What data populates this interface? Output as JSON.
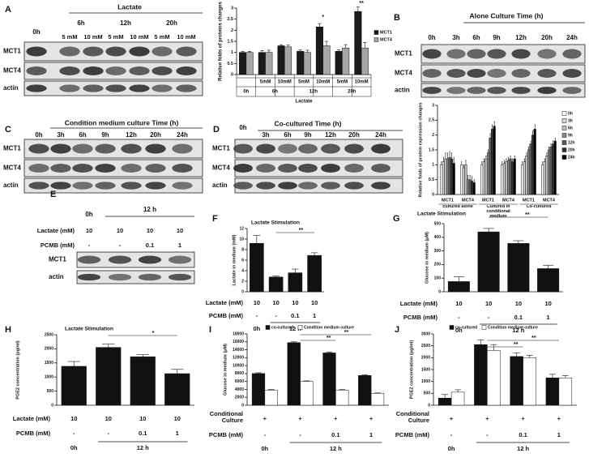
{
  "blots": [
    {
      "letter": "A",
      "header": "Lactate",
      "time_labels": [
        "0h",
        "6h",
        "12h",
        "20h"
      ],
      "dose_labels": [
        "5 mM",
        "10 mM",
        "5 mM",
        "10 mM",
        "5 mM",
        "10 mM"
      ],
      "rows": [
        "MCT1",
        "MCT4",
        "actin"
      ]
    },
    {
      "letter": "B",
      "header": "Alone Culture Time (h)",
      "time_labels": [
        "0h",
        "3h",
        "6h",
        "9h",
        "12h",
        "20h",
        "24h"
      ],
      "rows": [
        "MCT1",
        "MCT4",
        "actin"
      ]
    },
    {
      "letter": "C",
      "header": "Condition medium culture Time (h)",
      "time_labels": [
        "0h",
        "3h",
        "6h",
        "9h",
        "12h",
        "20h",
        "24h"
      ],
      "rows": [
        "MCT1",
        "MCT4",
        "actin"
      ]
    },
    {
      "letter": "D",
      "header": "Co-cultured Time (h)",
      "time_labels": [
        "0h",
        "3h",
        "6h",
        "9h",
        "12h",
        "20h",
        "24h"
      ],
      "rows": [
        "MCT1",
        "MCT4",
        "actin"
      ]
    },
    {
      "letter": "E",
      "time_labels": [
        "0h",
        "12 h"
      ],
      "condition_rows": [
        {
          "label": "Lactate (mM)",
          "values": [
            "10",
            "10",
            "10",
            "10"
          ]
        },
        {
          "label": "PCMB (mM)",
          "values": [
            "-",
            "-",
            "0.1",
            "1"
          ]
        }
      ],
      "rows": [
        "MCT1",
        "actin"
      ]
    }
  ],
  "chart_data": [
    {
      "type": "bar",
      "y_label": "Relative folds of proteins changes",
      "x_label": "Lactate",
      "categories": [
        null,
        "5mM",
        "10mM",
        "5mM",
        "10mM",
        "5mM",
        "10mM"
      ],
      "groups": [
        "0h",
        "6h",
        "12h",
        "20h"
      ],
      "series": [
        {
          "name": "MCT1",
          "color": "#1a1a1a",
          "values": [
            1.0,
            1.0,
            1.3,
            1.05,
            2.15,
            1.05,
            2.85
          ],
          "errors": [
            0.05,
            0.08,
            0.05,
            0.06,
            0.15,
            0.06,
            0.2
          ]
        },
        {
          "name": "MCT4",
          "color": "#a6a6a6",
          "values": [
            1.0,
            1.0,
            1.25,
            1.0,
            1.3,
            1.2,
            1.2
          ],
          "errors": [
            0.05,
            0.1,
            0.08,
            0.1,
            0.2,
            0.15,
            0.25
          ]
        }
      ],
      "ylim": [
        0,
        3
      ],
      "yticks": [
        0,
        0.5,
        1,
        1.5,
        2,
        2.5,
        3
      ],
      "legend": "right",
      "annotations": [
        "*",
        "**"
      ]
    },
    {
      "type": "bar",
      "y_label": "Relative folds of protein expression changes",
      "categories": [
        "MCT1",
        "MCT4",
        "MCT1",
        "MCT4",
        "MCT1",
        "MCT4"
      ],
      "groups": [
        "cultured alone",
        "Cultured in conditional medium",
        "Co-cultured"
      ],
      "series": [
        {
          "name": "0h",
          "color": "#ffffff",
          "values": [
            1.0,
            1.0,
            1.0,
            1.0,
            1.0,
            1.0
          ],
          "errors": [
            0.1,
            0.1,
            0.1,
            0.1,
            0.1,
            0.1
          ]
        },
        {
          "name": "3h",
          "color": "#d9d9d9",
          "values": [
            1.1,
            0.9,
            1.1,
            1.05,
            1.1,
            1.1
          ],
          "errors": [
            0.15,
            0.1,
            0.1,
            0.1,
            0.1,
            0.1
          ]
        },
        {
          "name": "6h",
          "color": "#bfbfbf",
          "values": [
            1.2,
            1.0,
            1.2,
            1.1,
            1.3,
            1.3
          ],
          "errors": [
            0.2,
            0.15,
            0.1,
            0.1,
            0.1,
            0.1
          ]
        },
        {
          "name": "9h",
          "color": "#8c8c8c",
          "values": [
            1.2,
            0.5,
            1.4,
            1.15,
            1.5,
            1.5
          ],
          "errors": [
            0.2,
            0.15,
            0.1,
            0.1,
            0.1,
            0.1
          ]
        },
        {
          "name": "12h",
          "color": "#595959",
          "values": [
            1.25,
            0.5,
            1.9,
            1.2,
            1.7,
            1.6
          ],
          "errors": [
            0.2,
            0.15,
            0.15,
            0.1,
            0.1,
            0.1
          ]
        },
        {
          "name": "20h",
          "color": "#333333",
          "values": [
            1.2,
            0.45,
            2.2,
            1.1,
            2.0,
            1.7
          ],
          "errors": [
            0.2,
            0.15,
            0.15,
            0.1,
            0.15,
            0.1
          ]
        },
        {
          "name": "24h",
          "color": "#000000",
          "values": [
            1.05,
            0.4,
            2.3,
            1.2,
            2.2,
            1.8
          ],
          "errors": [
            0.2,
            0.1,
            0.15,
            0.1,
            0.15,
            0.1
          ]
        }
      ],
      "ylim": [
        0,
        3
      ],
      "yticks": [
        0,
        0.5,
        1,
        1.5,
        2,
        2.5,
        3
      ],
      "legend": "right"
    },
    {
      "type": "bar",
      "letter": "F",
      "title": "Lactate Stimulation",
      "y_label": "Lactate in medium (mM)",
      "categories": [
        null,
        null,
        null,
        null
      ],
      "groups": [
        "0h",
        "12 h"
      ],
      "series": [
        {
          "color": "#111111",
          "values": [
            9.2,
            2.8,
            3.6,
            6.9
          ],
          "errors": [
            1.5,
            0.2,
            0.7,
            0.5
          ]
        }
      ],
      "ylim": [
        0,
        12
      ],
      "yticks": [
        0,
        2,
        4,
        6,
        8,
        10,
        12
      ],
      "annotations": [
        "**"
      ],
      "condition_rows": [
        {
          "label": "Lactate (mM)",
          "values": [
            "10",
            "10",
            "10",
            "10"
          ]
        },
        {
          "label": "PCMB (mM)",
          "values": [
            "-",
            "-",
            "0.1",
            "1"
          ]
        }
      ]
    },
    {
      "type": "bar",
      "letter": "G",
      "title": "Lactate Stimulation",
      "y_label": "Glucose in medium (μM)",
      "categories": [
        null,
        null,
        null,
        null
      ],
      "groups": [
        "0h",
        "12 h"
      ],
      "series": [
        {
          "color": "#111111",
          "values": [
            75,
            440,
            355,
            170
          ],
          "errors": [
            35,
            25,
            20,
            25
          ]
        }
      ],
      "ylim": [
        0,
        500
      ],
      "yticks": [
        0,
        100,
        200,
        300,
        400,
        500
      ],
      "annotations": [
        "**"
      ],
      "condition_rows": [
        {
          "label": "Lactate (mM)",
          "values": [
            "10",
            "10",
            "10",
            "10"
          ]
        },
        {
          "label": "PCMB (mM)",
          "values": [
            "-",
            "-",
            "0.1",
            "1"
          ]
        }
      ]
    },
    {
      "type": "bar",
      "letter": "H",
      "title": "Lactate Stimulation",
      "y_label": "PGE2 concentration (pg/ml)",
      "categories": [
        null,
        null,
        null,
        null
      ],
      "groups": [
        "0h",
        "12 h"
      ],
      "series": [
        {
          "color": "#111111",
          "values": [
            1380,
            2050,
            1720,
            1120
          ],
          "errors": [
            170,
            120,
            70,
            150
          ]
        }
      ],
      "ylim": [
        0,
        2500
      ],
      "yticks": [
        0,
        500,
        1000,
        1500,
        2000,
        2500
      ],
      "annotations": [
        "*"
      ],
      "condition_rows": [
        {
          "label": "Lactate (mM)",
          "values": [
            "10",
            "10",
            "10",
            "10"
          ]
        },
        {
          "label": "PCMB (mM)",
          "values": [
            "-",
            "-",
            "0.1",
            "1"
          ]
        }
      ]
    },
    {
      "type": "bar",
      "letter": "I",
      "y_label": "Glucose in medium (μM)",
      "categories": [
        null,
        null,
        null,
        null
      ],
      "groups": [
        "0h",
        "12 h"
      ],
      "series": [
        {
          "name": "co-cultured",
          "color": "#111111",
          "values": [
            8000,
            15800,
            13200,
            7500
          ],
          "errors": [
            200,
            200,
            250,
            200
          ]
        },
        {
          "name": "Condition medium culture",
          "color": "#ffffff",
          "values": [
            3800,
            6000,
            3800,
            3000
          ],
          "errors": [
            150,
            150,
            150,
            100
          ]
        }
      ],
      "ylim": [
        0,
        18000
      ],
      "yticks": [
        0,
        2000,
        4000,
        6000,
        8000,
        10000,
        12000,
        14000,
        16000,
        18000
      ],
      "legend": "top",
      "annotations": [
        "**",
        "**"
      ],
      "condition_rows": [
        {
          "label": "Conditional Culture",
          "values": [
            "+",
            "+",
            "+",
            "+"
          ]
        },
        {
          "label": "PCMB (mM)",
          "values": [
            "-",
            "-",
            "0.1",
            "1"
          ]
        }
      ]
    },
    {
      "type": "bar",
      "letter": "J",
      "y_label": "PGE2 concentration (pg/ml)",
      "categories": [
        null,
        null,
        null,
        null
      ],
      "groups": [
        "0h",
        "12 h"
      ],
      "series": [
        {
          "name": "co-cultured",
          "color": "#111111",
          "values": [
            300,
            2550,
            2050,
            1150
          ],
          "errors": [
            150,
            200,
            150,
            150
          ]
        },
        {
          "name": "Condition medium culture",
          "color": "#ffffff",
          "values": [
            550,
            2300,
            2000,
            1150
          ],
          "errors": [
            100,
            250,
            100,
            100
          ]
        }
      ],
      "ylim": [
        0,
        3000
      ],
      "yticks": [
        0,
        500,
        1000,
        1500,
        2000,
        2500,
        3000
      ],
      "legend": "top",
      "annotations": [
        "**",
        "**"
      ],
      "condition_rows": [
        {
          "label": "Conditional Culture",
          "values": [
            "+",
            "+",
            "+",
            "+"
          ]
        },
        {
          "label": "PCMB (mM)",
          "values": [
            "-",
            "-",
            "0.1",
            "1"
          ]
        }
      ]
    }
  ]
}
